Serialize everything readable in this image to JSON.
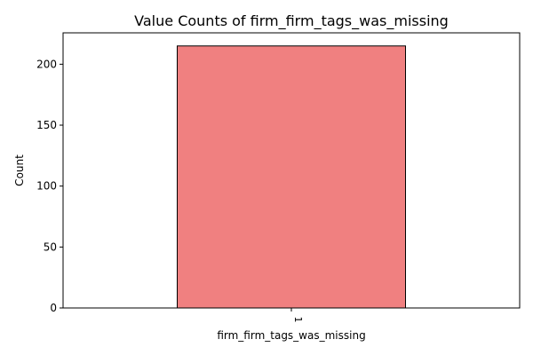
{
  "chart_data": {
    "type": "bar",
    "title": "Value Counts of firm_firm_tags_was_missing",
    "xlabel": "firm_firm_tags_was_missing",
    "ylabel": "Count",
    "categories": [
      "1"
    ],
    "values": [
      215
    ],
    "ylim": [
      0,
      225.75
    ],
    "yticks": [
      0,
      50,
      100,
      150,
      200
    ],
    "grid": false,
    "legend": "none",
    "colors": {
      "bar": "#f08080",
      "bar_edge": "#000000"
    }
  }
}
